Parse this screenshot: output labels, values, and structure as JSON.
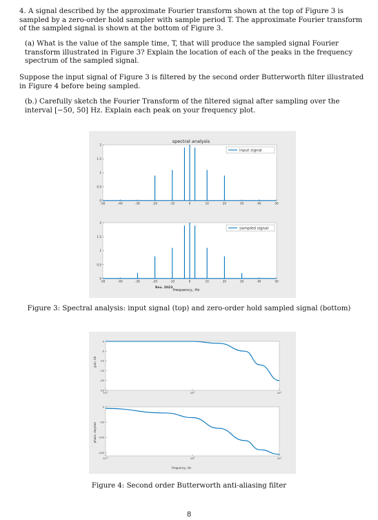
{
  "q4": {
    "number": "4.",
    "text": "A signal described by the approximate Fourier transform shown at the top of Figure 3 is sampled by a zero-order hold sampler with sample period T. The approximate Fourier transform of the sampled signal is shown at the bottom of Figure 3."
  },
  "part_a": {
    "label": "(a)",
    "text": "What is the value of the sample time, T, that will produce the sampled signal Fourier transform illustrated in Figure 3? Explain the location of each of the peaks in the frequency spectrum of the sampled signal."
  },
  "suppose": {
    "text": "Suppose the input signal of Figure 3 is filtered by the second order Butterworth filter illustrated in Figure 4 before being sampled."
  },
  "part_b": {
    "label": "(b.)",
    "text": "Carefully sketch the Fourier Transform of the filtered signal after sampling over the interval [−50, 50] Hz. Explain each peak on your frequency plot."
  },
  "figure3": {
    "caption": "Figure 3: Spectral analysis: input signal (top) and zero-order hold sampled signal (bottom)",
    "title": "spectral analysis",
    "xlabel": "frequency, Hz",
    "watermark": "Rev. 2023",
    "legend_top": "input signal",
    "legend_bottom": "sampled signal",
    "line_color": "#0072bd"
  },
  "figure4": {
    "caption": "Figure 4: Second order Butterworth anti-aliasing filter",
    "ylabel_top": "gain, db",
    "ylabel_bottom": "phase, degrees",
    "xlabel": "frequency, Hz",
    "line_color": "#0072bd"
  },
  "page_number": "8",
  "chart_data": [
    {
      "type": "line",
      "title": "spectral analysis",
      "series": [
        {
          "name": "input signal",
          "x": [
            -40,
            -20,
            -10,
            -3,
            0,
            3,
            10,
            20,
            40
          ],
          "values": [
            0.03,
            0.9,
            1.1,
            1.9,
            2.0,
            1.9,
            1.1,
            0.9,
            0.03
          ]
        }
      ],
      "xlim": [
        -50,
        50
      ],
      "ylim": [
        0,
        2
      ],
      "xticks": [
        -50,
        -40,
        -30,
        -20,
        -10,
        0,
        10,
        20,
        30,
        40,
        50
      ],
      "yticks": [
        0,
        0.5,
        1,
        1.5,
        2
      ],
      "legend": "top-right"
    },
    {
      "type": "line",
      "xlabel": "frequency, Hz",
      "series": [
        {
          "name": "sampled signal",
          "x": [
            -40,
            -30,
            -20,
            -10,
            -3,
            0,
            3,
            10,
            20,
            30,
            40
          ],
          "values": [
            0.03,
            0.2,
            0.8,
            1.1,
            1.9,
            2.0,
            1.9,
            1.1,
            0.8,
            0.2,
            0.03
          ]
        }
      ],
      "xlim": [
        -50,
        50
      ],
      "ylim": [
        0,
        2
      ],
      "xticks": [
        -50,
        -40,
        -30,
        -20,
        -10,
        0,
        10,
        20,
        30,
        40,
        50
      ],
      "yticks": [
        0,
        0.5,
        1,
        1.5,
        2
      ],
      "legend": "top-right"
    },
    {
      "type": "line",
      "ylabel": "gain, db",
      "x_scale": "log",
      "xticks": [
        "10^-1",
        "10^0",
        "10^1"
      ],
      "yticks": [
        0,
        -5,
        -10,
        -15,
        -20,
        -25
      ],
      "ylim": [
        -25,
        0
      ],
      "series": [
        {
          "x": [
            0.1,
            0.5,
            1,
            2,
            4,
            6,
            10
          ],
          "values": [
            0,
            0,
            0,
            -1,
            -5,
            -12,
            -20
          ]
        }
      ]
    },
    {
      "type": "line",
      "ylabel": "phase, degrees",
      "xlabel": "frequency, Hz",
      "x_scale": "log",
      "xticks": [
        "10^-1",
        "10^0",
        "10^1"
      ],
      "yticks": [
        0,
        -50,
        -100,
        -150
      ],
      "ylim": [
        -160,
        0
      ],
      "series": [
        {
          "x": [
            0.1,
            0.5,
            1,
            2,
            4,
            6,
            10
          ],
          "values": [
            -5,
            -20,
            -35,
            -70,
            -110,
            -140,
            -155
          ]
        }
      ]
    }
  ]
}
